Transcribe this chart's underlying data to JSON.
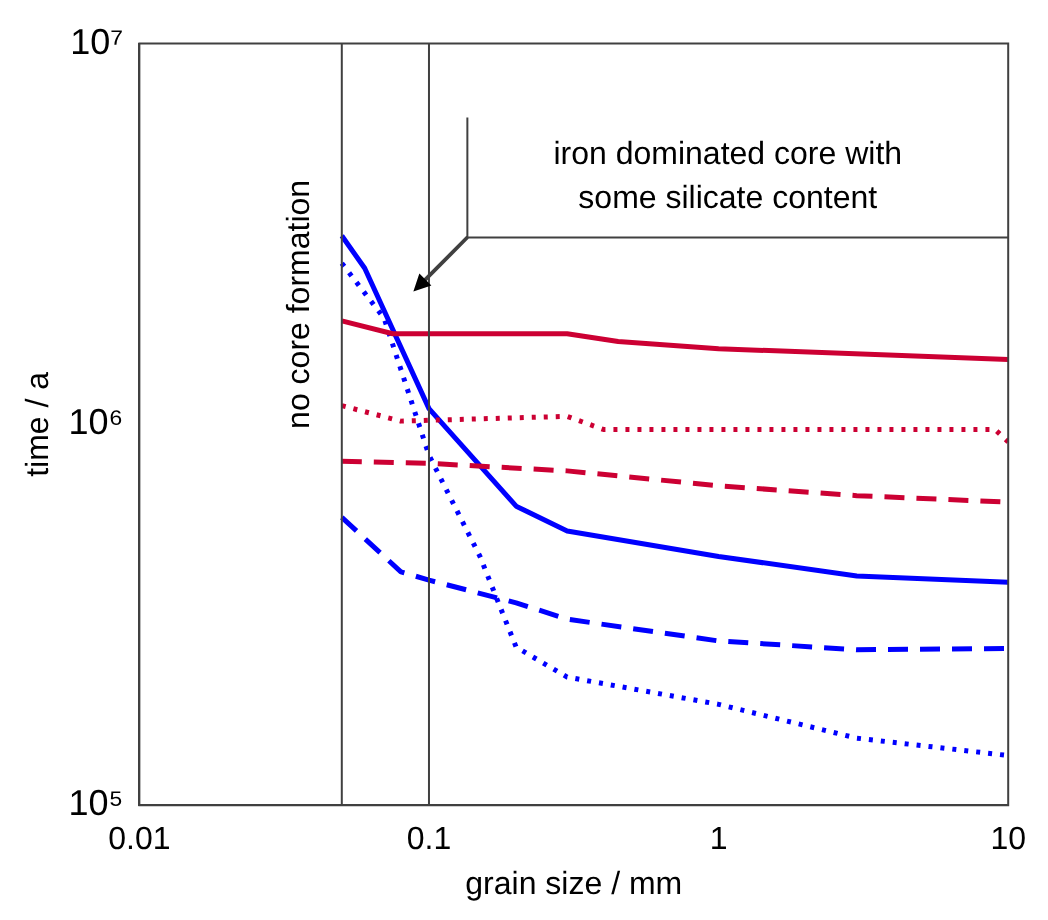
{
  "chart_data": {
    "type": "line",
    "xlabel": "grain size / mm",
    "ylabel": "time / a",
    "log": "xy",
    "grid": false,
    "legend": false,
    "marker": "none",
    "xlim": [
      0.01,
      10
    ],
    "xticks": [
      0.01,
      0.1,
      1,
      10
    ],
    "ylim": [
      100000,
      10000000
    ],
    "yticks": [
      {
        "value": 100000,
        "label": "10⁵"
      },
      {
        "value": 1000000,
        "label": "10⁶"
      },
      {
        "value": 10000000,
        "label": "10⁷"
      }
    ],
    "ref_lines": [
      {
        "axis": "x",
        "value": 0.05,
        "color": "#404040"
      },
      {
        "axis": "x",
        "value": 0.1,
        "color": "#404040"
      }
    ],
    "annotations": [
      "no core formation",
      "iron dominated core with some silicate content"
    ],
    "series": [
      {
        "color": "#cc0033",
        "line_style": "solid",
        "x": [
          0.05,
          0.075,
          0.3,
          0.45,
          1,
          10
        ],
        "values": [
          1870000,
          1730000,
          1730000,
          1650000,
          1580000,
          1480000
        ]
      },
      {
        "color": "#cc0033",
        "line_style": "dotted",
        "x": [
          0.05,
          0.08,
          0.3,
          0.4,
          9,
          10
        ],
        "values": [
          1120000,
          1020000,
          1050000,
          970000,
          970000,
          900000
        ]
      },
      {
        "color": "#cc0033",
        "line_style": "dashed",
        "x": [
          0.05,
          0.1,
          0.3,
          1,
          3,
          10
        ],
        "values": [
          800000,
          790000,
          755000,
          690000,
          650000,
          625000
        ]
      },
      {
        "color": "#0000ff",
        "line_style": "solid",
        "x": [
          0.05,
          0.06,
          0.1,
          0.2,
          0.3,
          1,
          3,
          10
        ],
        "values": [
          3130000,
          2570000,
          1100000,
          610000,
          525000,
          450000,
          400000,
          385000
        ]
      },
      {
        "color": "#0000ff",
        "line_style": "dashed",
        "x": [
          0.05,
          0.08,
          0.1,
          0.2,
          0.3,
          1,
          3,
          10
        ],
        "values": [
          570000,
          410000,
          390000,
          340000,
          308000,
          270000,
          256000,
          258000
        ]
      },
      {
        "color": "#0000ff",
        "line_style": "dotted",
        "x": [
          0.05,
          0.07,
          0.1,
          0.15,
          0.2,
          0.3,
          1,
          3,
          10
        ],
        "values": [
          2650000,
          1900000,
          830000,
          450000,
          260000,
          217000,
          184000,
          150000,
          135000
        ]
      }
    ]
  }
}
